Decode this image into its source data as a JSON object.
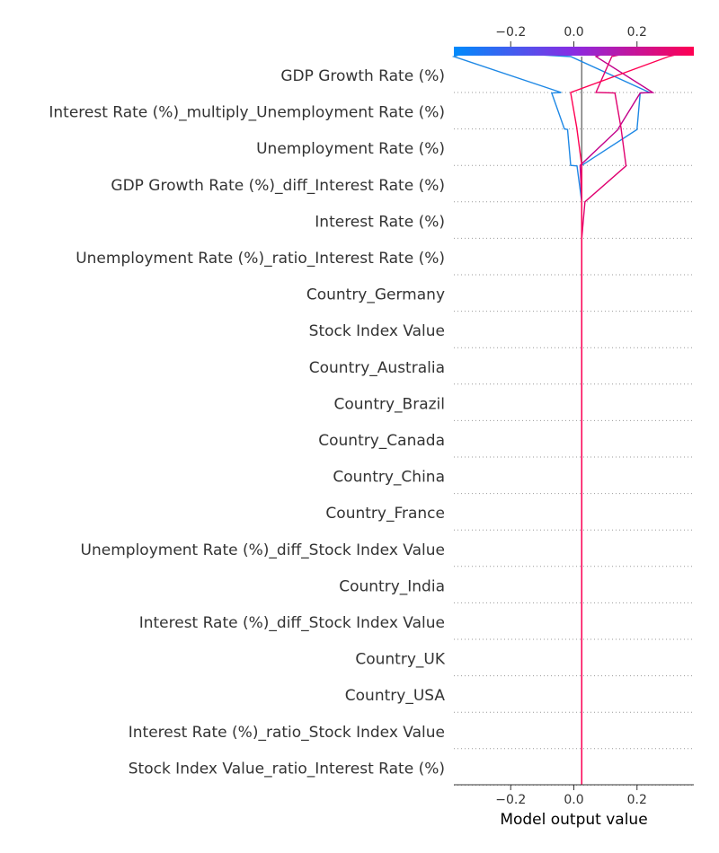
{
  "chart_data": {
    "type": "line",
    "subtype": "shap-decision-plot",
    "xlabel": "Model output value",
    "xlim": [
      -0.38,
      0.38
    ],
    "x_ticks": [
      -0.2,
      0.0,
      0.2
    ],
    "x_tick_labels": [
      "−0.2",
      "0.0",
      "0.2"
    ],
    "base_value": 0.025,
    "grid": "dotted horizontal lines per feature",
    "features": [
      "GDP Growth Rate (%)",
      "Interest Rate (%)_multiply_Unemployment Rate (%)",
      "Unemployment Rate (%)",
      "GDP Growth Rate (%)_diff_Interest Rate (%)",
      "Interest Rate (%)",
      "Unemployment Rate (%)_ratio_Interest Rate (%)",
      "Country_Germany",
      "Stock Index Value",
      "Country_Australia",
      "Country_Brazil",
      "Country_Canada",
      "Country_China",
      "Country_France",
      "Unemployment Rate (%)_diff_Stock Index Value",
      "Country_India",
      "Interest Rate (%)_diff_Stock Index Value",
      "Country_UK",
      "Country_USA",
      "Interest Rate (%)_ratio_Stock Index Value",
      "Stock Index Value_ratio_Interest Rate (%)"
    ],
    "colorbar": {
      "ticks": [
        -0.2,
        0.0,
        0.2
      ],
      "tick_labels": [
        "−0.2",
        "0.0",
        "0.2"
      ],
      "colors": [
        "#008bfb",
        "#8a2be2",
        "#ff0052"
      ]
    },
    "series": [
      {
        "color": "#1e88e5",
        "final": -0.33,
        "path": [
          [
            -0.38,
            -0.04
          ],
          [
            -0.07,
            -0.03
          ],
          [
            -0.02,
            -0.01
          ],
          [
            0.01,
            0.025
          ],
          [
            0.025,
            0.025
          ],
          [
            0.025,
            0.025
          ]
        ]
      },
      {
        "color": "#1e88e5",
        "final": -0.31,
        "path": [
          [
            -0.01,
            0.24
          ],
          [
            0.21,
            0.2
          ],
          [
            0.2,
            0.025
          ],
          [
            0.025,
            0.025
          ],
          [
            0.025,
            0.025
          ],
          [
            0.025,
            0.025
          ]
        ]
      },
      {
        "color": "#c2008a",
        "final": 0.12,
        "path": [
          [
            0.07,
            0.25
          ],
          [
            0.21,
            0.14
          ],
          [
            0.14,
            0.02
          ],
          [
            0.02,
            0.025
          ],
          [
            0.025,
            0.025
          ],
          [
            0.025,
            0.025
          ]
        ]
      },
      {
        "color": "#e0006f",
        "final": 0.2,
        "path": [
          [
            0.12,
            0.07
          ],
          [
            0.13,
            0.15
          ],
          [
            0.15,
            0.165
          ],
          [
            0.165,
            0.035
          ],
          [
            0.035,
            0.025
          ],
          [
            0.025,
            0.025
          ]
        ]
      },
      {
        "color": "#ff0052",
        "final": 0.37,
        "path": [
          [
            0.3,
            -0.01
          ],
          [
            -0.01,
            0.01
          ],
          [
            0.01,
            0.025
          ],
          [
            0.025,
            0.025
          ],
          [
            0.025,
            0.025
          ],
          [
            0.025,
            0.025
          ]
        ]
      }
    ]
  }
}
